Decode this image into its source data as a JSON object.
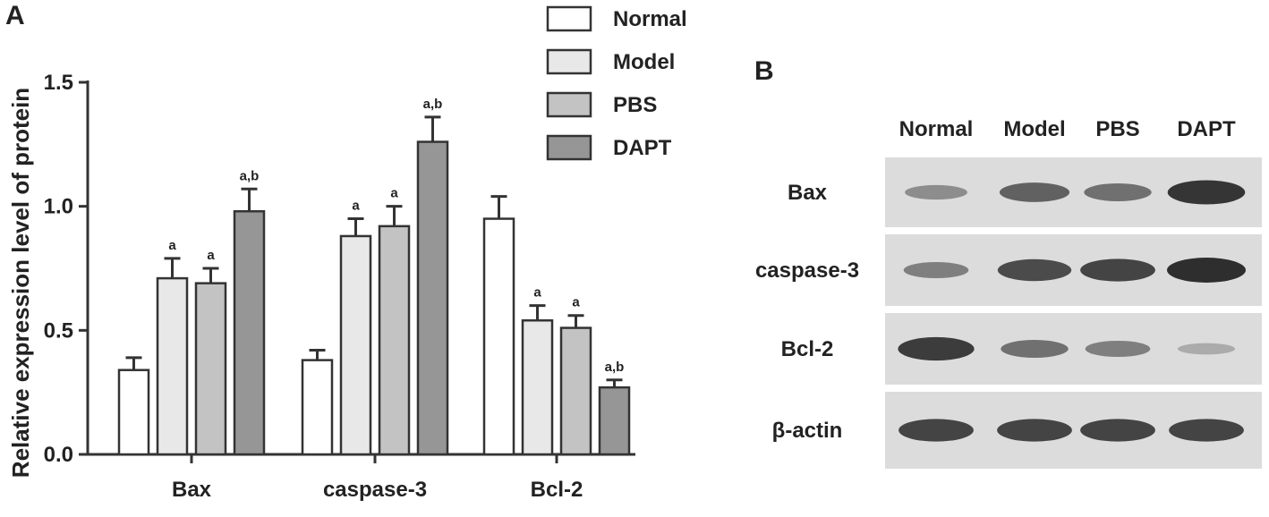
{
  "panel_a": {
    "label": "A"
  },
  "panel_b": {
    "label": "B"
  },
  "chart_data": {
    "type": "bar",
    "title": "",
    "xlabel": "",
    "ylabel": "Relative expression level of protein",
    "ylim": [
      0,
      1.5
    ],
    "yticks": [
      "0.0",
      "0.5",
      "1.0",
      "1.5"
    ],
    "categories": [
      "Bax",
      "caspase-3",
      "Bcl-2"
    ],
    "legend_position": "top-right",
    "series": [
      {
        "name": "Normal",
        "color": "#ffffff",
        "values": [
          0.34,
          0.38,
          0.95
        ],
        "errors": [
          0.05,
          0.04,
          0.09
        ],
        "annotations": [
          "",
          "",
          ""
        ]
      },
      {
        "name": "Model",
        "color": "#e8e8e8",
        "values": [
          0.71,
          0.88,
          0.54
        ],
        "errors": [
          0.08,
          0.07,
          0.06
        ],
        "annotations": [
          "a",
          "a",
          "a"
        ]
      },
      {
        "name": "PBS",
        "color": "#c3c3c3",
        "values": [
          0.69,
          0.92,
          0.51
        ],
        "errors": [
          0.06,
          0.08,
          0.05
        ],
        "annotations": [
          "a",
          "a",
          "a"
        ]
      },
      {
        "name": "DAPT",
        "color": "#969696",
        "values": [
          0.98,
          1.26,
          0.27
        ],
        "errors": [
          0.09,
          0.1,
          0.03
        ],
        "annotations": [
          "a,b",
          "a,b",
          "a,b"
        ]
      }
    ]
  },
  "blot": {
    "columns": [
      "Normal",
      "Model",
      "PBS",
      "DAPT"
    ],
    "rows": [
      {
        "label": "Bax",
        "intensity": [
          0.35,
          0.65,
          0.55,
          0.95
        ]
      },
      {
        "label": "caspase-3",
        "intensity": [
          0.45,
          0.8,
          0.85,
          1.0
        ]
      },
      {
        "label": "Bcl-2",
        "intensity": [
          0.9,
          0.55,
          0.45,
          0.15
        ]
      },
      {
        "label": "β-actin",
        "intensity": [
          0.85,
          0.85,
          0.85,
          0.85
        ]
      }
    ]
  }
}
